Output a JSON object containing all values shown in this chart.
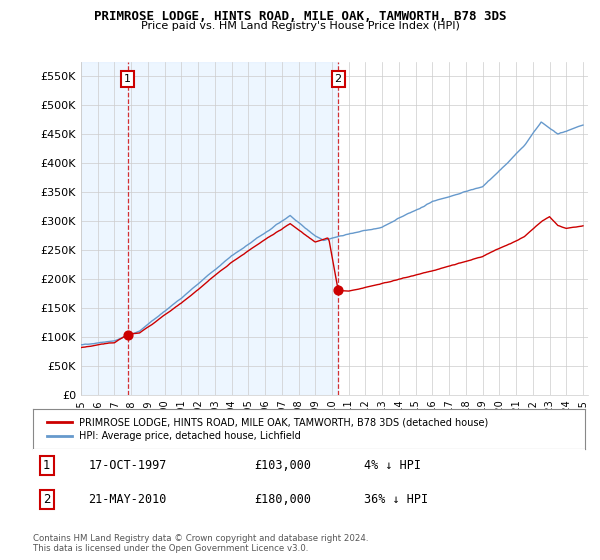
{
  "title": "PRIMROSE LODGE, HINTS ROAD, MILE OAK, TAMWORTH, B78 3DS",
  "subtitle": "Price paid vs. HM Land Registry's House Price Index (HPI)",
  "ylabel_ticks": [
    "£0",
    "£50K",
    "£100K",
    "£150K",
    "£200K",
    "£250K",
    "£300K",
    "£350K",
    "£400K",
    "£450K",
    "£500K",
    "£550K"
  ],
  "ytick_vals": [
    0,
    50000,
    100000,
    150000,
    200000,
    250000,
    300000,
    350000,
    400000,
    450000,
    500000,
    550000
  ],
  "ylim": [
    0,
    575000
  ],
  "red_line_color": "#cc0000",
  "blue_line_color": "#6699cc",
  "blue_fill_color": "#ddeeff",
  "purchase1_year": 1997.79,
  "purchase2_year": 2010.37,
  "marker1_price": 103000,
  "marker2_price": 180000,
  "legend_label_red": "PRIMROSE LODGE, HINTS ROAD, MILE OAK, TAMWORTH, B78 3DS (detached house)",
  "legend_label_blue": "HPI: Average price, detached house, Lichfield",
  "table_row1": [
    "1",
    "17-OCT-1997",
    "£103,000",
    "4% ↓ HPI"
  ],
  "table_row2": [
    "2",
    "21-MAY-2010",
    "£180,000",
    "36% ↓ HPI"
  ],
  "footer": "Contains HM Land Registry data © Crown copyright and database right 2024.\nThis data is licensed under the Open Government Licence v3.0.",
  "bg_color": "#ffffff",
  "grid_color": "#cccccc"
}
